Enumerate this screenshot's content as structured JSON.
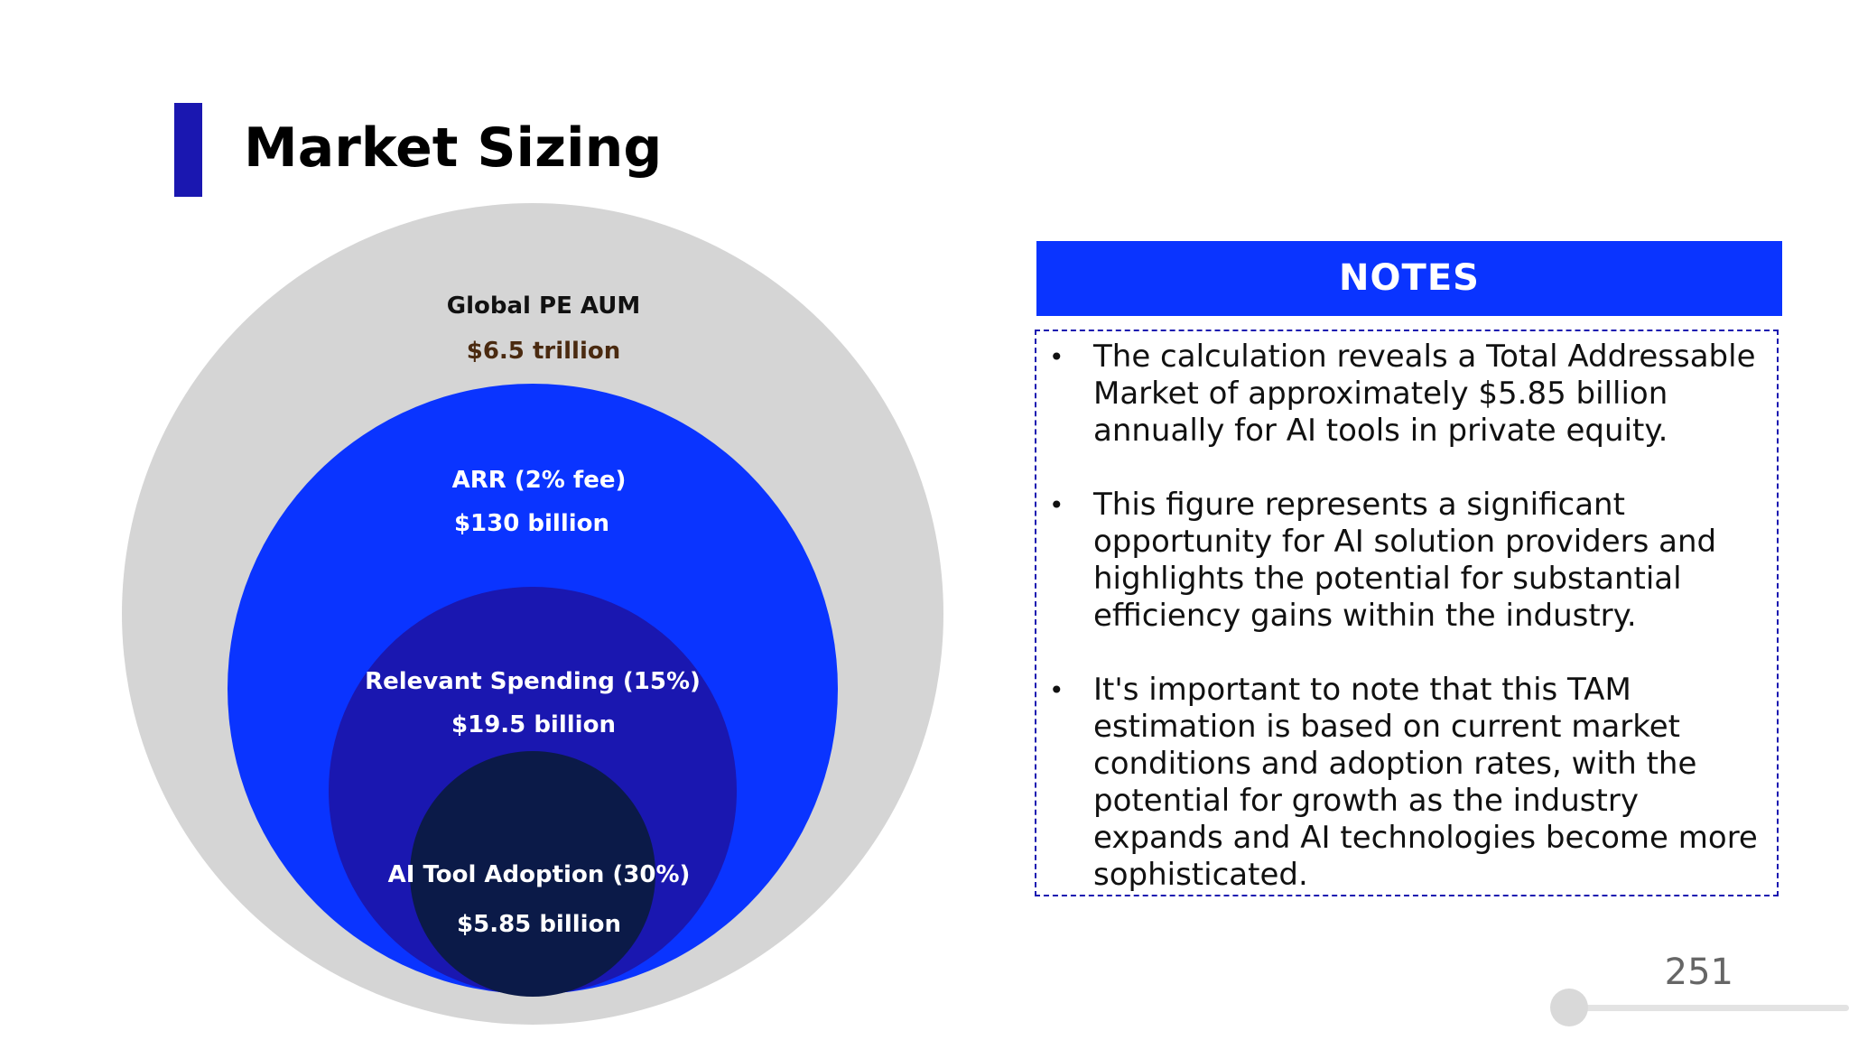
{
  "slide": {
    "title": "Market Sizing",
    "page_number": "251",
    "progress_fraction": 0.0
  },
  "colors": {
    "accent_bar": "#1a17b0",
    "notes_header": "#0a34ff",
    "circle_outer": "#d5d5d5",
    "circle_arr": "#0a34ff",
    "circle_spending": "#1a17b0",
    "circle_adoption": "#0b1a48"
  },
  "diagram": {
    "levels": [
      {
        "label": "Global PE AUM",
        "value": "$6.5 trillion"
      },
      {
        "label": "ARR (2% fee)",
        "value": "$130 billion"
      },
      {
        "label": "Relevant Spending (15%)",
        "value": "$19.5 billion"
      },
      {
        "label": "AI Tool Adoption (30%)",
        "value": "$5.85 billion"
      }
    ]
  },
  "notes": {
    "header": "NOTES",
    "bullet_glyph": "•",
    "items": [
      "The calculation reveals a Total Addressable Market of approximately $5.85 billion annually for AI tools in private equity.",
      "This figure represents a significant opportunity for AI solution providers and highlights the potential for substantial efficiency gains within the industry.",
      "It's important to note that this TAM estimation is based on current market conditions and adoption rates, with the potential for growth as the industry expands and AI technologies become more sophisticated."
    ]
  }
}
